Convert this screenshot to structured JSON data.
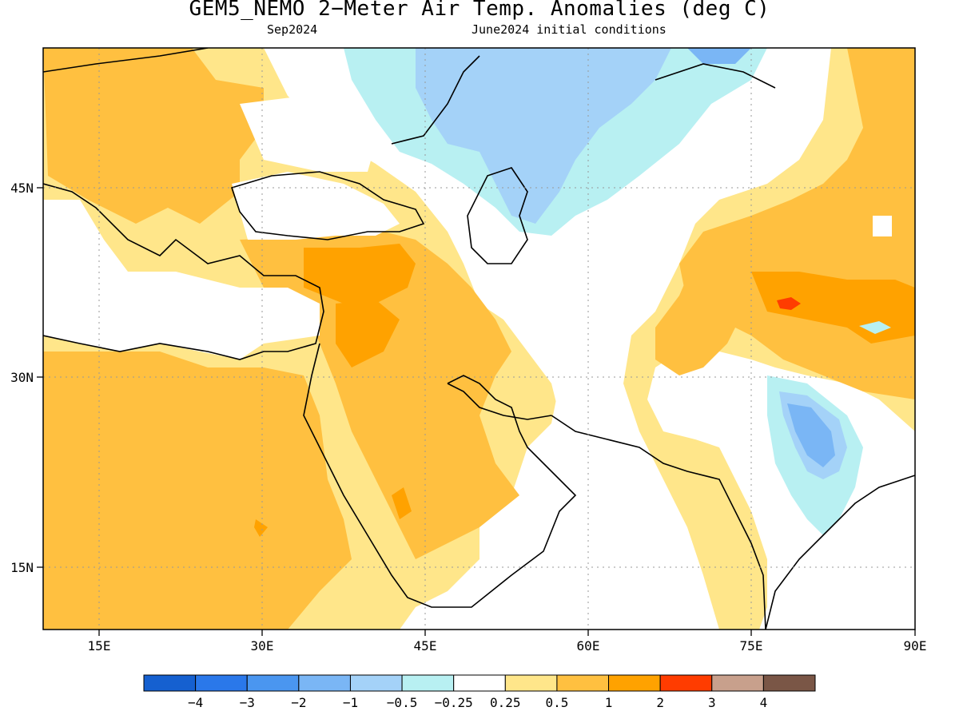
{
  "title": "GEM5_NEMO 2−Meter Air Temp. Anomalies (deg C)",
  "subtitle_left": "Sep2024",
  "subtitle_right": "June2024 initial conditions",
  "map": {
    "lon_range": [
      10,
      90
    ],
    "lat_range": [
      10,
      57
    ],
    "lon_ticks": [
      "15E",
      "30E",
      "45E",
      "60E",
      "75E",
      "90E"
    ],
    "lat_ticks": [
      "45N",
      "30N",
      "15N"
    ],
    "grid": true
  },
  "colorbar": {
    "colors": [
      "#1560d0",
      "#2a78ea",
      "#4a96f0",
      "#7ab6f5",
      "#a4d2f8",
      "#b8f0f2",
      "#ffffff",
      "#ffe68a",
      "#ffc040",
      "#ffa200",
      "#ff3c00",
      "#c8a08c",
      "#7a5646"
    ],
    "labels": [
      "−4",
      "−3",
      "−2",
      "−1",
      "−0.5",
      "−0.25",
      "0.25",
      "0.5",
      "1",
      "2",
      "3",
      "4"
    ]
  }
}
